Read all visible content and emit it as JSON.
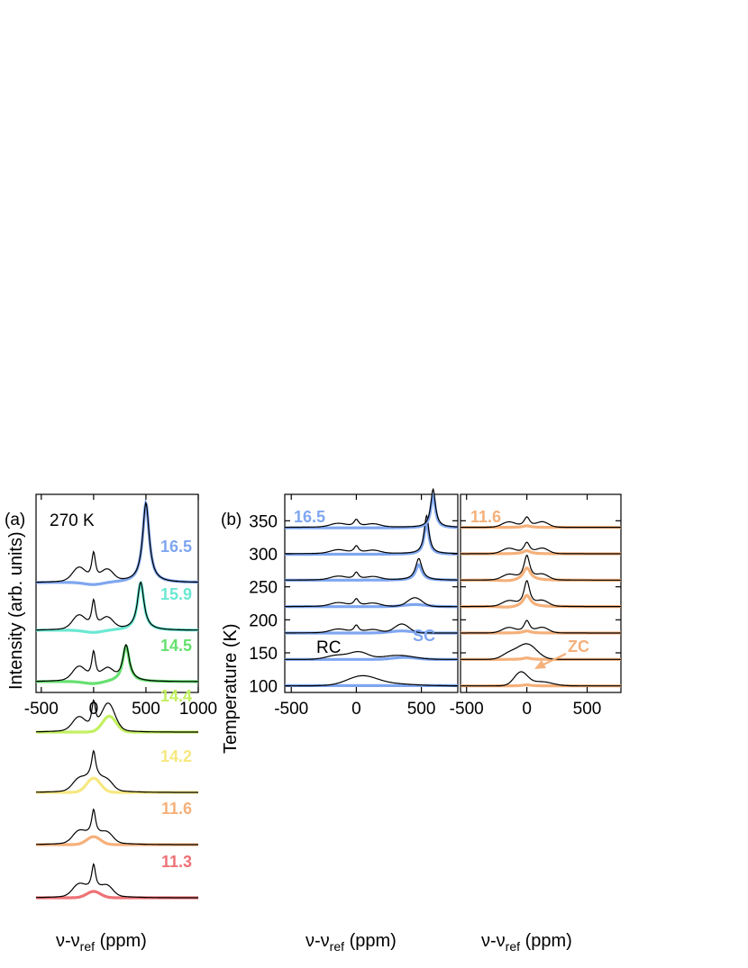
{
  "chart_data": [
    {
      "type": "line",
      "panel_label": "(a)",
      "annotation": "270 K",
      "xlabel": "ν-ν",
      "xlabel_sub": "ref",
      "xlabel_unit": " (ppm)",
      "ylabel": "Intensity (arb. units)",
      "xlim": [
        -550,
        1000
      ],
      "xticks": [
        "-500",
        "0",
        "500",
        "1000"
      ],
      "xtick_values": [
        -500,
        0,
        500,
        1000
      ],
      "note": "Stacked NMR spectra; each row = one label (black raw spectrum, colored component)",
      "series": [
        {
          "name": "16.5",
          "color": "#7fa6f0",
          "peak_x": 500,
          "peak_height": 1.0
        },
        {
          "name": "15.9",
          "color": "#6ae8d2",
          "peak_x": 450,
          "peak_height": 0.6
        },
        {
          "name": "14.5",
          "color": "#66e070",
          "peak_x": 310,
          "peak_height": 0.45
        },
        {
          "name": "14.4",
          "color": "#c2f060",
          "peak_x": 150,
          "peak_height": 0.2
        },
        {
          "name": "14.2",
          "color": "#f6e880",
          "peak_x": 0,
          "peak_height": 0.18
        },
        {
          "name": "11.6",
          "color": "#f5b07a",
          "peak_x": 0,
          "peak_height": 0.1
        },
        {
          "name": "11.3",
          "color": "#ee7276",
          "peak_x": 0,
          "peak_height": 0.08
        }
      ]
    },
    {
      "type": "line",
      "panel_label": "(b)",
      "series_label": "16.5",
      "series_color": "#7fa6f0",
      "ylabel": "Temperature (K)",
      "xlabel": "ν-ν",
      "xlabel_sub": "ref",
      "xlabel_unit": " (ppm)",
      "xlim": [
        -550,
        780
      ],
      "ylim": [
        90,
        390
      ],
      "xticks": [
        "-500",
        "0",
        "500"
      ],
      "xtick_values": [
        -500,
        0,
        500
      ],
      "yticks": [
        "100",
        "150",
        "200",
        "250",
        "300",
        "350"
      ],
      "ytick_values": [
        100,
        150,
        200,
        250,
        300,
        350
      ],
      "annotations": [
        {
          "text": "RC",
          "color": "#000000"
        },
        {
          "text": "SC",
          "color": "#7fa6f0"
        }
      ],
      "temperatures": [
        100,
        140,
        180,
        220,
        260,
        300,
        340
      ],
      "sc_peak_x": [
        null,
        370,
        350,
        450,
        480,
        540,
        590
      ]
    },
    {
      "type": "line",
      "series_label": "11.6",
      "series_color": "#f5b07a",
      "xlabel": "ν-ν",
      "xlabel_sub": "ref",
      "xlabel_unit": " (ppm)",
      "xlim": [
        -550,
        780
      ],
      "ylim": [
        90,
        390
      ],
      "xticks": [
        "-500",
        "0",
        "500"
      ],
      "xtick_values": [
        -500,
        0,
        500
      ],
      "annotations": [
        {
          "text": "ZC",
          "color": "#f5b07a"
        }
      ],
      "temperatures": [
        100,
        140,
        180,
        220,
        260,
        300,
        340
      ]
    }
  ]
}
